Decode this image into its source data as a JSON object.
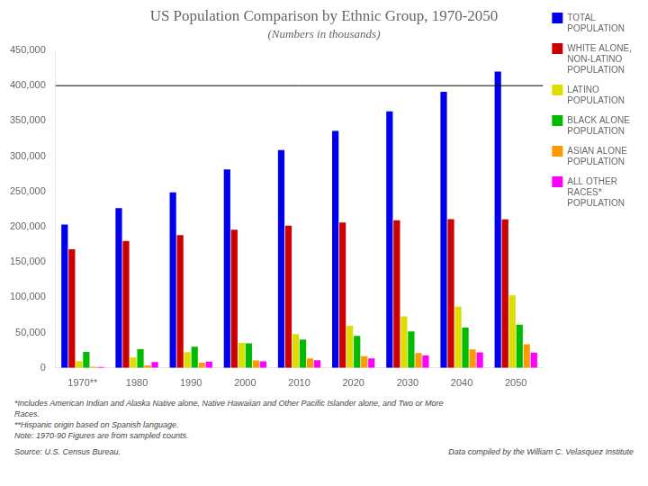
{
  "chart_data": {
    "type": "bar",
    "title": "US Population Comparison by Ethnic Group, 1970-2050",
    "subtitle": "(Numbers in thousands)",
    "categories": [
      "1970**",
      "1980",
      "1990",
      "2000",
      "2010",
      "2020",
      "2030",
      "2040",
      "2050"
    ],
    "series": [
      {
        "name": "TOTAL\nPOPULATION",
        "color": "#0000EE",
        "values": [
          203200,
          226500,
          248700,
          281400,
          308700,
          335800,
          363600,
          391400,
          419900
        ]
      },
      {
        "name": "WHITE ALONE,\nNON-LATINO\nPOPULATION",
        "color": "#CC0000",
        "values": [
          168000,
          180000,
          188100,
          195700,
          201600,
          205900,
          209200,
          210700,
          210600
        ]
      },
      {
        "name": "LATINO\nPOPULATION",
        "color": "#DDDD00",
        "values": [
          9600,
          14600,
          22400,
          35300,
          47800,
          59800,
          73000,
          86700,
          102600
        ]
      },
      {
        "name": "BLACK ALONE\nPOPULATION",
        "color": "#00BB00",
        "values": [
          22600,
          26500,
          30000,
          34700,
          40200,
          45400,
          51600,
          57000,
          61400
        ]
      },
      {
        "name": "ASIAN ALONE\nPOPULATION",
        "color": "#FF9900",
        "values": [
          1500,
          3700,
          7300,
          10600,
          13400,
          16600,
          21100,
          26100,
          33400
        ]
      },
      {
        "name": "ALL OTHER\nRACES*\nPOPULATION",
        "color": "#FF00FF",
        "values": [
          1400,
          8200,
          9000,
          9400,
          10800,
          13500,
          17700,
          22100,
          21800
        ]
      }
    ],
    "ylim": [
      0,
      450000
    ],
    "yticks": [
      0,
      {
        "value": 50000,
        "label": "50,000"
      },
      {
        "value": 100000,
        "label": "100,000"
      },
      {
        "value": 150000,
        "label": "150,000"
      },
      {
        "value": 200000,
        "label": "200,000"
      },
      {
        "value": 250000,
        "label": "250,000"
      },
      {
        "value": 300000,
        "label": "300,000"
      },
      {
        "value": 350000,
        "label": "350,000"
      },
      {
        "value": 400000,
        "label": "400,000"
      },
      {
        "value": 450000,
        "label": "450,000"
      }
    ],
    "hline": 400000,
    "grid": false,
    "legend": "right",
    "footnotes": [
      "*Includes American Indian and Alaska Native alone, Native Hawaiian and Other Pacific Islander alone, and Two or More",
      "Races.",
      "**Hispanic origin based on Spanish language.",
      "Note: 1970-90 Figures are from sampled counts."
    ],
    "source": "Source:  U.S. Census Bureau.",
    "credit": "Data compiled by the William C. Velasquez Institute"
  }
}
